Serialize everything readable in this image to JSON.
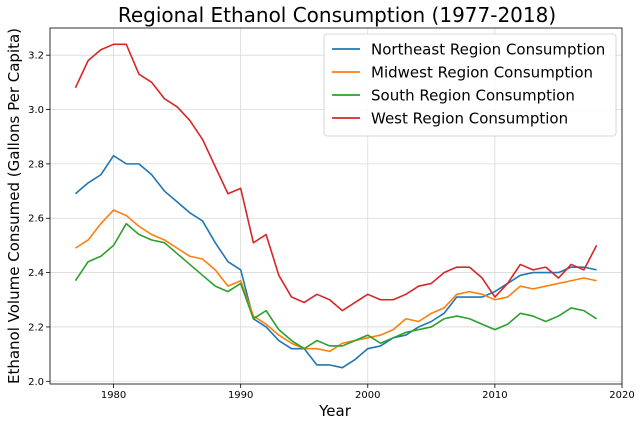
{
  "chart_data": {
    "type": "line",
    "title": "Regional Ethanol Consumption (1977-2018)",
    "xlabel": "Year",
    "ylabel": "Ethanol Volume Consumed (Gallons Per Capita)",
    "xlim": [
      1975,
      2020
    ],
    "ylim": [
      1.99,
      3.3
    ],
    "x_ticks": [
      1980,
      1990,
      2000,
      2010,
      2020
    ],
    "x_tick_labels": [
      "1980",
      "1990",
      "2000",
      "2010",
      "2020"
    ],
    "y_ticks": [
      2.0,
      2.2,
      2.4,
      2.6,
      2.8,
      3.0,
      3.2
    ],
    "y_tick_labels": [
      "2.0",
      "2.2",
      "2.4",
      "2.6",
      "2.8",
      "3.0",
      "3.2"
    ],
    "grid": true,
    "legend_position": "top-right",
    "x": [
      1977,
      1978,
      1979,
      1980,
      1981,
      1982,
      1983,
      1984,
      1985,
      1986,
      1987,
      1988,
      1989,
      1990,
      1991,
      1992,
      1993,
      1994,
      1995,
      1996,
      1997,
      1998,
      1999,
      2000,
      2001,
      2002,
      2003,
      2004,
      2005,
      2006,
      2007,
      2008,
      2009,
      2010,
      2011,
      2012,
      2013,
      2014,
      2015,
      2016,
      2017,
      2018
    ],
    "series": [
      {
        "name": "Northeast Region Consumption",
        "color": "#1f77b4",
        "values": [
          2.69,
          2.73,
          2.76,
          2.83,
          2.8,
          2.8,
          2.76,
          2.7,
          2.66,
          2.62,
          2.59,
          2.51,
          2.44,
          2.41,
          2.23,
          2.2,
          2.15,
          2.12,
          2.12,
          2.06,
          2.06,
          2.05,
          2.08,
          2.12,
          2.13,
          2.16,
          2.17,
          2.2,
          2.22,
          2.25,
          2.31,
          2.31,
          2.31,
          2.33,
          2.36,
          2.39,
          2.4,
          2.4,
          2.4,
          2.42,
          2.42,
          2.41
        ]
      },
      {
        "name": "Midwest Region Consumption",
        "color": "#ff7f0e",
        "values": [
          2.49,
          2.52,
          2.58,
          2.63,
          2.61,
          2.57,
          2.54,
          2.52,
          2.49,
          2.46,
          2.45,
          2.41,
          2.35,
          2.37,
          2.24,
          2.21,
          2.17,
          2.14,
          2.12,
          2.12,
          2.11,
          2.14,
          2.15,
          2.16,
          2.17,
          2.19,
          2.23,
          2.22,
          2.25,
          2.27,
          2.32,
          2.33,
          2.32,
          2.3,
          2.31,
          2.35,
          2.34,
          2.35,
          2.36,
          2.37,
          2.38,
          2.37
        ]
      },
      {
        "name": "South Region Consumption",
        "color": "#2ca02c",
        "values": [
          2.37,
          2.44,
          2.46,
          2.5,
          2.58,
          2.54,
          2.52,
          2.51,
          2.47,
          2.43,
          2.39,
          2.35,
          2.33,
          2.36,
          2.23,
          2.26,
          2.19,
          2.15,
          2.12,
          2.15,
          2.13,
          2.13,
          2.15,
          2.17,
          2.14,
          2.16,
          2.18,
          2.19,
          2.2,
          2.23,
          2.24,
          2.23,
          2.21,
          2.19,
          2.21,
          2.25,
          2.24,
          2.22,
          2.24,
          2.27,
          2.26,
          2.23
        ]
      },
      {
        "name": "West Region Consumption",
        "color": "#d62728",
        "values": [
          3.08,
          3.18,
          3.22,
          3.24,
          3.24,
          3.13,
          3.1,
          3.04,
          3.01,
          2.96,
          2.89,
          2.79,
          2.69,
          2.71,
          2.51,
          2.54,
          2.39,
          2.31,
          2.29,
          2.32,
          2.3,
          2.26,
          2.29,
          2.32,
          2.3,
          2.3,
          2.32,
          2.35,
          2.36,
          2.4,
          2.42,
          2.42,
          2.38,
          2.31,
          2.36,
          2.43,
          2.41,
          2.42,
          2.38,
          2.43,
          2.41,
          2.5
        ]
      }
    ]
  }
}
